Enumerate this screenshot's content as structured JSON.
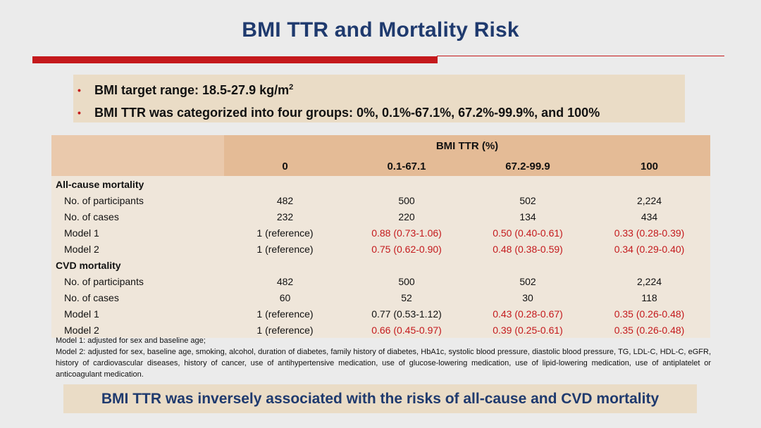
{
  "title": "BMI TTR and Mortality Risk",
  "bullets": {
    "b1_text": "BMI target range: 18.5-27.9 kg/m",
    "b1_sup": "2",
    "b2_text": "BMI TTR was categorized into four groups: 0%, 0.1%-67.1%, 67.2%-99.9%, and 100%"
  },
  "table": {
    "group_header": "BMI TTR (%)",
    "columns": [
      "0",
      "0.1-67.1",
      "67.2-99.9",
      "100"
    ],
    "sections": [
      {
        "name": "All-cause mortality",
        "rows": [
          {
            "label": "No. of participants",
            "cells": [
              "482",
              "500",
              "502",
              "2,224"
            ]
          },
          {
            "label": "No. of cases",
            "cells": [
              "232",
              "220",
              "134",
              "434"
            ]
          },
          {
            "label": "Model 1",
            "cells": [
              "1 (reference)",
              "0.88 (0.73-1.06)",
              "0.50 (0.40-0.61)",
              "0.33 (0.28-0.39)"
            ]
          },
          {
            "label": "Model 2",
            "cells": [
              "1 (reference)",
              "0.75 (0.62-0.90)",
              "0.48 (0.38-0.59)",
              "0.34 (0.29-0.40)"
            ]
          }
        ]
      },
      {
        "name": "CVD mortality",
        "rows": [
          {
            "label": "No. of participants",
            "cells": [
              "482",
              "500",
              "502",
              "2,224"
            ]
          },
          {
            "label": "No. of cases",
            "cells": [
              "60",
              "52",
              "30",
              "118"
            ]
          },
          {
            "label": "Model 1",
            "cells": [
              "1 (reference)",
              "0.77 (0.53-1.12)",
              "0.43 (0.28-0.67)",
              "0.35 (0.26-0.48)"
            ]
          },
          {
            "label": "Model 2",
            "cells": [
              "1 (reference)",
              "0.66 (0.45-0.97)",
              "0.39 (0.25-0.61)",
              "0.35 (0.26-0.48)"
            ]
          }
        ]
      }
    ]
  },
  "notes": {
    "model1": "Model 1: adjusted for sex and baseline age;",
    "model2": "Model 2: adjusted for sex, baseline age, smoking, alcohol, duration of diabetes, family history of diabetes, HbA1c, systolic blood pressure, diastolic blood pressure, TG, LDL-C, HDL-C, eGFR, history of cardiovascular diseases, history of cancer, use of antihypertensive medication, use of glucose-lowering medication, use of lipid-lowering medication, use of antiplatelet or anticoagulant medication."
  },
  "conclusion": "BMI TTR was inversely associated with the risks of all-cause and CVD mortality",
  "colors": {
    "title": "#1f3a6e",
    "accent_red": "#c4191c",
    "header_bg": "#eac9ac",
    "body_bg": "#efe6da",
    "box_bg": "#eadcc6"
  }
}
